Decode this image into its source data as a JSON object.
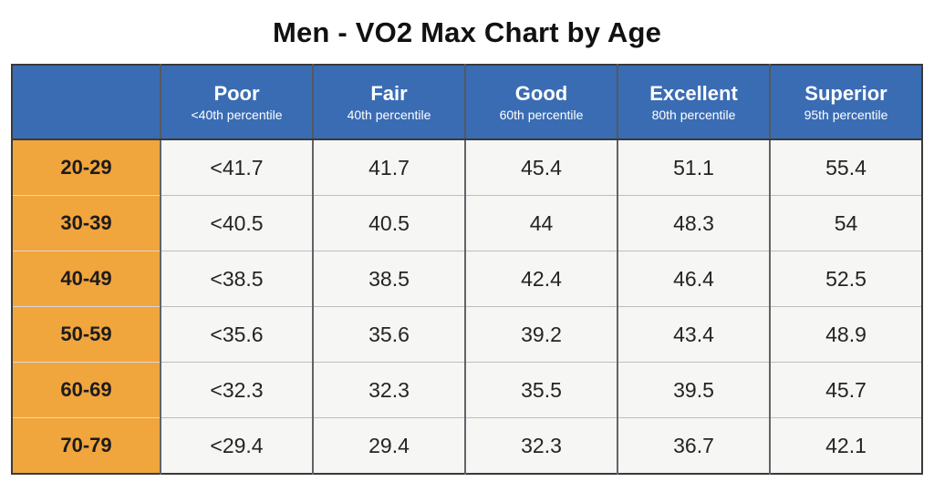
{
  "title": "Men - VO2 Max Chart by Age",
  "colors": {
    "header_bg": "#3a6cb4",
    "age_column_bg": "#f1a53d",
    "cell_bg": "#f6f6f4",
    "header_text": "#ffffff",
    "body_text": "#242424",
    "outer_border": "#3a3a3a"
  },
  "chart_data": {
    "type": "table",
    "title": "Men - VO2 Max Chart by Age",
    "corner_label": "",
    "columns": [
      {
        "label": "Poor",
        "sub": "<40th percentile"
      },
      {
        "label": "Fair",
        "sub": "40th percentile"
      },
      {
        "label": "Good",
        "sub": "60th percentile"
      },
      {
        "label": "Excellent",
        "sub": "80th percentile"
      },
      {
        "label": "Superior",
        "sub": "95th percentile"
      }
    ],
    "rows": [
      {
        "age": "20-29",
        "values": [
          "<41.7",
          "41.7",
          "45.4",
          "51.1",
          "55.4"
        ]
      },
      {
        "age": "30-39",
        "values": [
          "<40.5",
          "40.5",
          "44",
          "48.3",
          "54"
        ]
      },
      {
        "age": "40-49",
        "values": [
          "<38.5",
          "38.5",
          "42.4",
          "46.4",
          "52.5"
        ]
      },
      {
        "age": "50-59",
        "values": [
          "<35.6",
          "35.6",
          "39.2",
          "43.4",
          "48.9"
        ]
      },
      {
        "age": "60-69",
        "values": [
          "<32.3",
          "32.3",
          "35.5",
          "39.5",
          "45.7"
        ]
      },
      {
        "age": "70-79",
        "values": [
          "<29.4",
          "29.4",
          "32.3",
          "36.7",
          "42.1"
        ]
      }
    ]
  }
}
